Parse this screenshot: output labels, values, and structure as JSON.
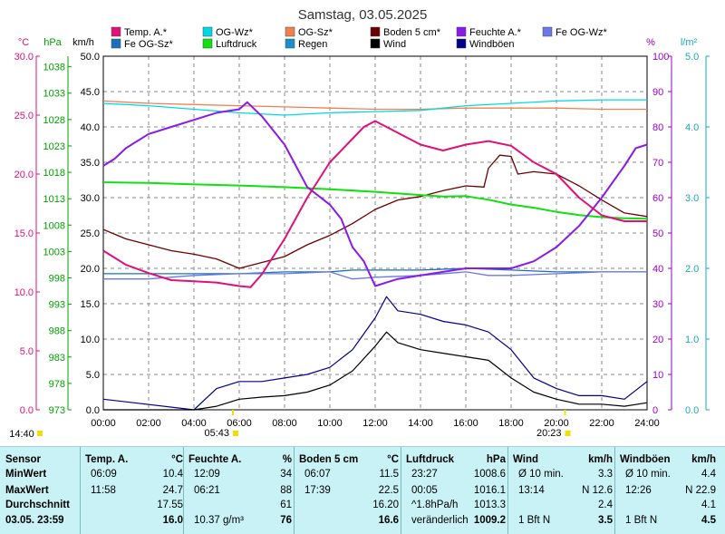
{
  "chart_data": {
    "type": "line",
    "title": "Samstag, 03.05.2025",
    "x_ticks": [
      "00:00",
      "02:00",
      "04:00",
      "06:00",
      "08:00",
      "10:00",
      "12:00",
      "14:00",
      "16:00",
      "18:00",
      "20:00",
      "22:00",
      "24:00"
    ],
    "xlim": [
      0,
      24
    ],
    "axes": {
      "temp_c": {
        "label": "°C",
        "ticks": [
          "30.0",
          "25.0",
          "20.0",
          "15.0",
          "10.0",
          "5.0",
          "0.0"
        ],
        "range": [
          0,
          30
        ],
        "color": "#e0107a"
      },
      "hpa": {
        "label": "hPa",
        "ticks": [
          "1038",
          "1033",
          "1028",
          "1023",
          "1018",
          "1013",
          "1008",
          "1003",
          "998",
          "993",
          "988",
          "983",
          "978",
          "973"
        ],
        "range": [
          973,
          1040
        ],
        "color": "#00a000"
      },
      "kmh": {
        "label": "km/h",
        "ticks": [
          "50.0",
          "45.0",
          "40.0",
          "35.0",
          "30.0",
          "25.0",
          "20.0",
          "15.0",
          "10.0",
          "5.0",
          "0.0"
        ],
        "range": [
          0,
          50
        ],
        "color": "#000000"
      },
      "percent": {
        "label": "%",
        "ticks": [
          "100",
          "90",
          "80",
          "70",
          "60",
          "50",
          "40",
          "30",
          "20",
          "10",
          "0"
        ],
        "range": [
          0,
          100
        ],
        "color": "#9b00c8"
      },
      "rain": {
        "label": "l/m²",
        "ticks": [
          "5.0",
          "4.0",
          "3.0",
          "2.0",
          "1.0",
          "0.0"
        ],
        "range": [
          0,
          5
        ],
        "color": "#1aa8b8"
      }
    },
    "legend": [
      {
        "name": "Temp. A.*",
        "color": "#e0107a"
      },
      {
        "name": "OG-Wz*",
        "color": "#00d8e8"
      },
      {
        "name": "OG-Sz*",
        "color": "#f08050"
      },
      {
        "name": "Boden 5 cm*",
        "color": "#6b0000"
      },
      {
        "name": "Feuchte A.*",
        "color": "#8a1ae8"
      },
      {
        "name": "Fe OG-Wz*",
        "color": "#6a78e8"
      },
      {
        "name": "Fe OG-Sz*",
        "color": "#1a70b8"
      },
      {
        "name": "Luftdruck",
        "color": "#10e010"
      },
      {
        "name": "Regen",
        "color": "#1a90c8"
      },
      {
        "name": "Wind",
        "color": "#000000"
      },
      {
        "name": "Windböen",
        "color": "#00008b"
      }
    ],
    "series": [
      {
        "name": "Temp. A.*",
        "axis": "temp_c",
        "color": "#e0107a",
        "x": [
          0,
          1,
          2,
          3,
          4,
          5,
          6,
          6.5,
          7,
          8,
          9,
          10,
          11,
          11.5,
          12,
          13,
          14,
          15,
          16,
          17,
          18,
          19,
          20,
          21,
          22,
          23,
          24
        ],
        "y": [
          13.5,
          12.3,
          11.6,
          11.0,
          10.9,
          10.8,
          10.5,
          10.4,
          11.5,
          14.5,
          18.0,
          21.0,
          23.0,
          24.0,
          24.5,
          23.5,
          22.5,
          22.0,
          22.5,
          22.8,
          22.4,
          21.0,
          20.0,
          18.0,
          16.5,
          16.0,
          16.0
        ]
      },
      {
        "name": "Feuchte A.*",
        "axis": "percent",
        "color": "#8a1ae8",
        "x": [
          0,
          0.5,
          1,
          2,
          3,
          4,
          5,
          6,
          6.35,
          7,
          8,
          9,
          10,
          10.5,
          11,
          11.5,
          12,
          12.5,
          13,
          14,
          15,
          16,
          17,
          18,
          19,
          20,
          21,
          22,
          23,
          23.5,
          24
        ],
        "y": [
          69,
          71,
          74,
          78,
          80,
          82,
          84,
          85,
          87,
          83,
          75,
          63,
          58,
          54,
          46,
          42,
          35,
          36,
          37,
          38,
          39,
          40,
          40,
          40,
          42,
          46,
          52,
          60,
          69,
          74,
          75
        ]
      },
      {
        "name": "OG-Wz*",
        "axis": "temp_c",
        "color": "#00d8e8",
        "x": [
          0,
          2,
          4,
          6,
          8,
          10,
          12,
          14,
          16,
          18,
          20,
          22,
          24
        ],
        "y": [
          26.0,
          25.8,
          25.5,
          25.2,
          25.0,
          25.2,
          25.3,
          25.4,
          25.8,
          26.0,
          26.2,
          26.3,
          26.3
        ]
      },
      {
        "name": "OG-Sz*",
        "axis": "temp_c",
        "color": "#f08050",
        "x": [
          0,
          2,
          4,
          6,
          8,
          10,
          12,
          14,
          16,
          18,
          20,
          22,
          24
        ],
        "y": [
          26.2,
          26.0,
          25.9,
          25.8,
          25.7,
          25.6,
          25.5,
          25.5,
          25.6,
          25.6,
          25.6,
          25.5,
          25.5
        ]
      },
      {
        "name": "Boden 5 cm*",
        "axis": "temp_c",
        "color": "#6b0000",
        "x": [
          0,
          1,
          2,
          3,
          4,
          5,
          6,
          7,
          8,
          9,
          10,
          11,
          12,
          13,
          14,
          15,
          16,
          16.8,
          17,
          17.5,
          18,
          18.3,
          19,
          20,
          21,
          22,
          23,
          24
        ],
        "y": [
          15.3,
          14.5,
          14.0,
          13.5,
          13.2,
          12.8,
          12.0,
          12.5,
          13.0,
          14.0,
          14.8,
          15.8,
          17.0,
          17.8,
          18.1,
          18.6,
          19.0,
          18.9,
          20.5,
          21.6,
          21.5,
          20.0,
          20.2,
          20.0,
          19.0,
          17.8,
          16.7,
          16.4
        ]
      },
      {
        "name": "Luftdruck",
        "axis": "hpa",
        "color": "#10e010",
        "x": [
          0,
          2,
          4,
          6,
          8,
          10,
          12,
          14,
          15,
          16,
          17,
          18,
          19,
          20,
          21,
          22,
          23,
          24
        ],
        "y": [
          1016.1,
          1016.0,
          1015.7,
          1015.5,
          1015.2,
          1014.8,
          1014.3,
          1013.7,
          1013.4,
          1013.5,
          1012.8,
          1011.9,
          1011.3,
          1010.5,
          1009.9,
          1009.5,
          1009.3,
          1009.2
        ]
      },
      {
        "name": "Fe OG-Sz*",
        "axis": "percent",
        "color": "#1a70b8",
        "x": [
          0,
          2,
          4,
          6,
          8,
          10,
          11,
          12,
          14,
          16,
          18,
          20,
          22,
          24
        ],
        "y": [
          38.5,
          38.5,
          38.5,
          38.5,
          39.0,
          39.0,
          39.5,
          39.5,
          39.5,
          40.0,
          39.5,
          39.0,
          39.0,
          39.0
        ]
      },
      {
        "name": "Fe OG-Wz*",
        "axis": "percent",
        "color": "#6a78e8",
        "x": [
          0,
          2,
          4,
          6,
          8,
          10,
          11,
          12,
          14,
          16,
          17,
          18,
          20,
          22,
          24
        ],
        "y": [
          37.0,
          37.0,
          38.0,
          38.5,
          38.5,
          39.0,
          37.0,
          37.5,
          38.0,
          39.0,
          38.0,
          38.0,
          38.5,
          39.0,
          39.0
        ]
      },
      {
        "name": "Wind",
        "axis": "kmh",
        "color": "#000000",
        "x": [
          0,
          4,
          5,
          6,
          7,
          8,
          9,
          10,
          11,
          12,
          12.5,
          13,
          14,
          15,
          16,
          17,
          18,
          19,
          20,
          21,
          22,
          23,
          24
        ],
        "y": [
          0,
          0,
          0.5,
          1.5,
          1.8,
          2.0,
          2.5,
          3.5,
          5.5,
          9.0,
          11.0,
          9.5,
          8.5,
          8.0,
          7.5,
          7.0,
          4.5,
          2.5,
          1.5,
          0.8,
          0.8,
          0.5,
          1.0
        ]
      },
      {
        "name": "Windböen",
        "axis": "kmh",
        "color": "#00008b",
        "x": [
          0,
          4,
          5,
          6,
          7,
          8,
          9,
          10,
          11,
          12,
          12.5,
          13,
          14,
          15,
          16,
          17,
          18,
          19,
          20,
          21,
          22,
          23,
          24
        ],
        "y": [
          1.5,
          0,
          3.0,
          4.0,
          4.0,
          4.5,
          5.0,
          6.0,
          8.5,
          13.0,
          16.0,
          14.0,
          13.5,
          12.5,
          12.0,
          11.0,
          8.5,
          4.5,
          3.0,
          2.0,
          2.0,
          1.5,
          4.0
        ]
      }
    ],
    "time_markers": [
      {
        "label": "14:40",
        "x": 0,
        "row": "left"
      },
      {
        "label": "05:43",
        "x": 5.72
      },
      {
        "label": "20:23",
        "x": 20.38
      }
    ]
  },
  "table": {
    "columns": [
      {
        "title": "Sensor",
        "unit": "",
        "rows": [
          [
            "MinWert"
          ],
          [
            "MaxWert"
          ],
          [
            "Durchschnitt"
          ],
          [
            "03.05. 23:59"
          ]
        ]
      },
      {
        "title": "Temp. A.",
        "unit": "°C",
        "rows": [
          [
            "06:09",
            "10.4"
          ],
          [
            "11:58",
            "24.7"
          ],
          [
            "",
            "17.55"
          ],
          [
            "",
            "16.0"
          ]
        ]
      },
      {
        "title": "Feuchte A.",
        "unit": "%",
        "rows": [
          [
            "12:09",
            "34"
          ],
          [
            "06:21",
            "88"
          ],
          [
            "",
            "61"
          ],
          [
            "10.37 g/m³",
            "76"
          ]
        ]
      },
      {
        "title": "Boden 5 cm",
        "unit": "°C",
        "rows": [
          [
            "06:07",
            "11.5"
          ],
          [
            "17:39",
            "22.5"
          ],
          [
            "",
            "16.20"
          ],
          [
            "",
            "16.6"
          ]
        ]
      },
      {
        "title": "Luftdruck",
        "unit": "hPa",
        "rows": [
          [
            "23:27",
            "1008.6"
          ],
          [
            "00:05",
            "1016.1"
          ],
          [
            "^1.8hPa/h",
            "1013.3"
          ],
          [
            "veränderlich",
            "1009.2"
          ]
        ]
      },
      {
        "title": "Wind",
        "unit": "km/h",
        "rows": [
          [
            "Ø 10 min.",
            "3.3"
          ],
          [
            "13:14",
            "N 12.6"
          ],
          [
            "",
            "2.4"
          ],
          [
            "1 Bft N",
            "3.5"
          ]
        ]
      },
      {
        "title": "Windböen",
        "unit": "km/h",
        "rows": [
          [
            "Ø 10 min.",
            "4.4"
          ],
          [
            "12:26",
            "N 22.9"
          ],
          [
            "",
            "4.1"
          ],
          [
            "1 Bft N",
            "4.5"
          ]
        ]
      }
    ]
  }
}
